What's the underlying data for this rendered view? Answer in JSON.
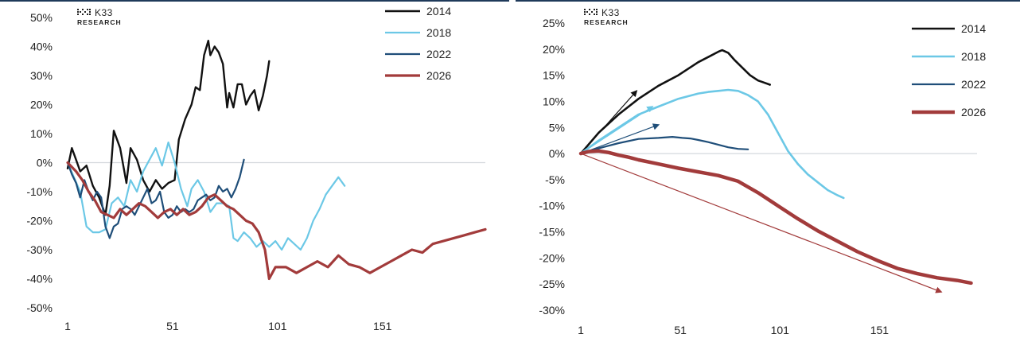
{
  "logo": {
    "main": "K33",
    "sub": "RESEARCH"
  },
  "colors": {
    "2014": "#111111",
    "2018": "#6cc8e6",
    "2022": "#1f4e79",
    "2026": "#a23b3b",
    "zero_line": "#d4d8dd",
    "divider": "#1f3a5a"
  },
  "chart_data": [
    {
      "type": "line",
      "title": "",
      "xlabel": "",
      "ylabel": "",
      "xlim": [
        1,
        200
      ],
      "ylim": [
        -50,
        50
      ],
      "x_ticks": [
        1,
        51,
        101,
        151
      ],
      "x_tick_labels": [
        "1",
        "51",
        "101",
        "151"
      ],
      "y_ticks": [
        50,
        40,
        30,
        20,
        10,
        0,
        -10,
        -20,
        -30,
        -40,
        -50
      ],
      "y_tick_labels": [
        "50%",
        "40%",
        "30%",
        "20%",
        "10%",
        "0%",
        "-10%",
        "-20%",
        "-30%",
        "-40%",
        "-50%"
      ],
      "grid": false,
      "legend_position": "top-right",
      "series": [
        {
          "name": "2014",
          "x": [
            1,
            3,
            5,
            7,
            10,
            13,
            16,
            19,
            21,
            23,
            26,
            29,
            31,
            34,
            37,
            40,
            43,
            46,
            49,
            52,
            54,
            57,
            60,
            62,
            64,
            66,
            68,
            69,
            71,
            73,
            75,
            77,
            78,
            80,
            82,
            84,
            86,
            88,
            90,
            92,
            94,
            96,
            97
          ],
          "y": [
            -2,
            5,
            1,
            -3,
            -1,
            -8,
            -12,
            -18,
            -8,
            11,
            5,
            -7,
            5,
            1,
            -6,
            -10,
            -6,
            -9,
            -7,
            -6,
            8,
            15,
            20,
            26,
            25,
            37,
            42,
            37,
            40,
            38,
            34,
            19,
            24,
            19,
            27,
            27,
            20,
            23,
            25,
            18,
            23,
            30,
            35
          ]
        },
        {
          "name": "2018",
          "x": [
            1,
            4,
            7,
            10,
            13,
            16,
            19,
            22,
            25,
            28,
            31,
            34,
            37,
            40,
            43,
            46,
            49,
            52,
            55,
            58,
            60,
            63,
            66,
            69,
            72,
            75,
            78,
            80,
            82,
            85,
            88,
            91,
            94,
            97,
            100,
            103,
            106,
            109,
            112,
            115,
            118,
            121,
            124,
            127,
            130,
            133
          ],
          "y": [
            0,
            -5,
            -10,
            -22,
            -24,
            -24,
            -23,
            -14,
            -12,
            -15,
            -6,
            -10,
            -3,
            1,
            5,
            -1,
            7,
            0,
            -9,
            -15,
            -9,
            -6,
            -10,
            -17,
            -14,
            -14,
            -15,
            -26,
            -27,
            -24,
            -26,
            -29,
            -27,
            -29,
            -27,
            -30,
            -26,
            -28,
            -30,
            -26,
            -20,
            -16,
            -11,
            -8,
            -5,
            -8
          ]
        },
        {
          "name": "2022",
          "x": [
            1,
            3,
            5,
            7,
            9,
            11,
            13,
            15,
            17,
            19,
            21,
            23,
            25,
            27,
            29,
            31,
            33,
            35,
            37,
            39,
            41,
            43,
            45,
            47,
            49,
            51,
            53,
            55,
            57,
            59,
            61,
            63,
            65,
            67,
            69,
            71,
            73,
            75,
            77,
            79,
            81,
            83,
            85
          ],
          "y": [
            0,
            -4,
            -7,
            -12,
            -6,
            -10,
            -13,
            -10,
            -12,
            -22,
            -26,
            -22,
            -21,
            -16,
            -15,
            -16,
            -18,
            -15,
            -12,
            -9,
            -14,
            -13,
            -10,
            -17,
            -19,
            -18,
            -15,
            -17,
            -16,
            -17,
            -16,
            -13,
            -12,
            -11,
            -13,
            -12,
            -8,
            -10,
            -9,
            -12,
            -9,
            -5,
            1
          ]
        },
        {
          "name": "2026",
          "x": [
            1,
            5,
            8,
            11,
            14,
            17,
            20,
            23,
            26,
            29,
            32,
            35,
            38,
            41,
            44,
            47,
            50,
            53,
            56,
            59,
            62,
            65,
            68,
            71,
            74,
            77,
            80,
            83,
            86,
            89,
            92,
            95,
            97,
            100,
            105,
            110,
            115,
            120,
            125,
            130,
            135,
            140,
            145,
            150,
            155,
            160,
            165,
            170,
            175,
            180,
            185,
            190,
            195,
            200
          ],
          "y": [
            0,
            -3,
            -6,
            -10,
            -13,
            -17,
            -18,
            -19,
            -16,
            -18,
            -16,
            -14,
            -15,
            -17,
            -19,
            -17,
            -16,
            -18,
            -16,
            -18,
            -17,
            -15,
            -12,
            -11,
            -13,
            -15,
            -16,
            -18,
            -20,
            -21,
            -24,
            -30,
            -40,
            -36,
            -36,
            -38,
            -36,
            -34,
            -36,
            -32,
            -35,
            -36,
            -38,
            -36,
            -34,
            -32,
            -30,
            -31,
            -28,
            -27,
            -26,
            -25,
            -24,
            -23
          ]
        }
      ]
    },
    {
      "type": "line",
      "title": "",
      "xlabel": "",
      "ylabel": "",
      "xlim": [
        1,
        200
      ],
      "ylim": [
        -30,
        25
      ],
      "x_ticks": [
        1,
        51,
        101,
        151
      ],
      "x_tick_labels": [
        "1",
        "51",
        "101",
        "151"
      ],
      "y_ticks": [
        25,
        20,
        15,
        10,
        5,
        0,
        -5,
        -10,
        -15,
        -20,
        -25,
        -30
      ],
      "y_tick_labels": [
        "25%",
        "20%",
        "15%",
        "10%",
        "5%",
        "0%",
        "-5%",
        "-10%",
        "-15%",
        "-20%",
        "-25%",
        "-30%"
      ],
      "grid": false,
      "legend_position": "top-right",
      "series": [
        {
          "name": "2014",
          "x": [
            1,
            10,
            20,
            30,
            40,
            50,
            60,
            65,
            70,
            72,
            75,
            78,
            82,
            86,
            90,
            93,
            96
          ],
          "y": [
            0,
            4,
            7.5,
            10.5,
            13,
            15,
            17.5,
            18.5,
            19.5,
            19.8,
            19.3,
            18,
            16.5,
            15,
            14,
            13.6,
            13.2
          ]
        },
        {
          "name": "2018",
          "x": [
            1,
            10,
            20,
            30,
            40,
            50,
            60,
            65,
            70,
            75,
            80,
            85,
            90,
            95,
            100,
            105,
            110,
            115,
            120,
            125,
            130,
            133
          ],
          "y": [
            0,
            2.5,
            5,
            7.5,
            9,
            10.5,
            11.5,
            11.8,
            12,
            12.2,
            12,
            11.2,
            10,
            7.5,
            4,
            0.5,
            -2,
            -4,
            -5.5,
            -7,
            -8,
            -8.5
          ]
        },
        {
          "name": "2022",
          "x": [
            1,
            10,
            20,
            30,
            40,
            47,
            52,
            56,
            60,
            65,
            70,
            75,
            80,
            85
          ],
          "y": [
            0,
            1,
            2,
            2.8,
            3,
            3.2,
            3,
            2.9,
            2.6,
            2.2,
            1.7,
            1.2,
            0.9,
            0.8
          ]
        },
        {
          "name": "2026",
          "x": [
            1,
            5,
            10,
            15,
            20,
            25,
            30,
            40,
            50,
            60,
            70,
            80,
            90,
            100,
            110,
            120,
            130,
            140,
            150,
            160,
            170,
            180,
            190,
            197
          ],
          "y": [
            0,
            0.4,
            0.5,
            0.2,
            -0.3,
            -0.7,
            -1.2,
            -2,
            -2.8,
            -3.5,
            -4.2,
            -5.3,
            -7.5,
            -10,
            -12.5,
            -14.8,
            -16.8,
            -18.8,
            -20.5,
            -22,
            -23,
            -23.8,
            -24.3,
            -24.8
          ]
        }
      ],
      "trend_arrows": [
        {
          "series": "2014",
          "from": [
            1,
            0
          ],
          "to": [
            29,
            12
          ]
        },
        {
          "series": "2018",
          "from": [
            1,
            0
          ],
          "to": [
            37,
            9
          ]
        },
        {
          "series": "2022",
          "from": [
            1,
            0
          ],
          "to": [
            40,
            5.5
          ]
        },
        {
          "series": "2026",
          "from": [
            1,
            0
          ],
          "to": [
            182,
            -26.5
          ]
        }
      ]
    }
  ]
}
